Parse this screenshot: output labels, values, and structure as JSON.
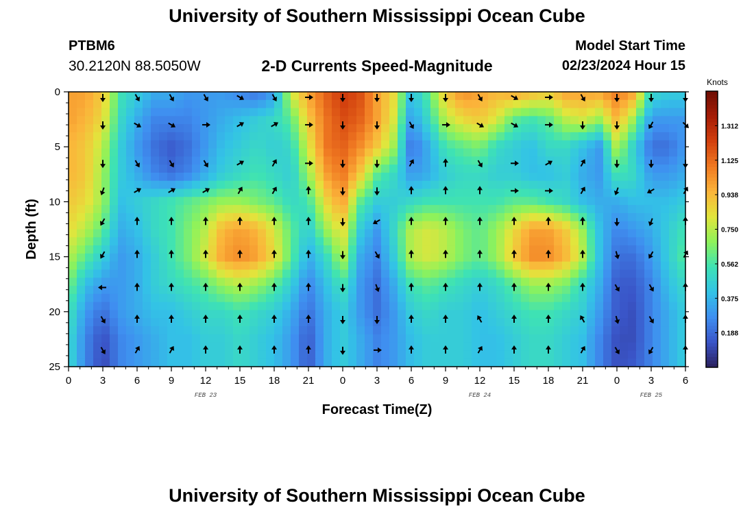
{
  "page": {
    "title_top": "University of Southern Mississippi Ocean Cube",
    "title_bottom": "University of Southern Mississippi Ocean Cube"
  },
  "station": {
    "id": "PTBM6",
    "coords": "30.2120N  88.5050W"
  },
  "model": {
    "label": "Model Start Time",
    "start": "02/23/2024 Hour 15"
  },
  "chart_data": {
    "type": "heatmap",
    "title": "2-D Currents Speed-Magnitude",
    "xlabel": "Forecast Time(Z)",
    "ylabel": "Depth (ft)",
    "x_tick_labels": [
      "0",
      "3",
      "6",
      "9",
      "12",
      "15",
      "18",
      "21",
      "0",
      "3",
      "6",
      "9",
      "12",
      "15",
      "18",
      "21",
      "0",
      "3",
      "6"
    ],
    "x_range_hours": [
      0,
      54
    ],
    "date_labels": [
      {
        "hour": 12,
        "text": "FEB 23"
      },
      {
        "hour": 36,
        "text": "FEB 24"
      },
      {
        "hour": 51,
        "text": "FEB 25"
      }
    ],
    "y_ticks": [
      0,
      5,
      10,
      15,
      20,
      25
    ],
    "ylim": [
      0,
      25
    ],
    "y_inverted": true,
    "colorbar": {
      "label": "Knots",
      "min": 0.0,
      "max": 1.5,
      "tick_values": [
        0.188,
        0.375,
        0.562,
        0.75,
        0.938,
        1.125,
        1.312
      ],
      "tick_labels": [
        "0.188",
        "0.375",
        "0.562",
        "0.750",
        "0.938",
        "1.125",
        "1.312"
      ],
      "colors": [
        "#2a1f5c",
        "#3a55c8",
        "#3f8ff0",
        "#33c3e6",
        "#3ee2b4",
        "#8ff25a",
        "#e2e53c",
        "#fbb43a",
        "#f07a22",
        "#d2400e",
        "#a51c06",
        "#6e0e04"
      ]
    },
    "speed_knots_grid": {
      "hours": [
        0,
        1.5,
        3,
        4.5,
        6,
        7.5,
        9,
        10.5,
        12,
        13.5,
        15,
        16.5,
        18,
        19.5,
        21,
        22.5,
        24,
        25.5,
        27,
        28.5,
        30,
        31.5,
        33,
        34.5,
        36,
        37.5,
        39,
        40.5,
        42,
        43.5,
        45,
        46.5,
        48,
        49.5,
        51,
        52.5,
        54
      ],
      "depths_ft": [
        0,
        2.5,
        5,
        7.5,
        10,
        12.5,
        15,
        17.5,
        20,
        22.5,
        25
      ],
      "values": [
        [
          1.0,
          1.0,
          0.9,
          0.55,
          0.45,
          0.35,
          0.35,
          0.3,
          0.3,
          0.3,
          0.25,
          0.2,
          0.3,
          0.8,
          1.0,
          1.15,
          1.25,
          1.2,
          1.0,
          0.85,
          0.4,
          0.6,
          0.9,
          1.05,
          1.0,
          0.95,
          1.0,
          0.95,
          0.9,
          1.0,
          1.0,
          1.0,
          1.1,
          1.0,
          0.5,
          0.45,
          0.45
        ],
        [
          1.0,
          0.95,
          0.85,
          0.5,
          0.35,
          0.25,
          0.25,
          0.25,
          0.3,
          0.35,
          0.4,
          0.45,
          0.5,
          0.6,
          0.9,
          1.1,
          1.2,
          1.15,
          1.0,
          0.8,
          0.3,
          0.5,
          0.75,
          0.85,
          0.9,
          0.8,
          0.6,
          0.55,
          0.6,
          0.75,
          0.8,
          0.7,
          0.95,
          0.7,
          0.3,
          0.3,
          0.3
        ],
        [
          0.95,
          0.9,
          0.75,
          0.45,
          0.3,
          0.2,
          0.15,
          0.2,
          0.3,
          0.4,
          0.45,
          0.5,
          0.45,
          0.5,
          0.8,
          1.1,
          1.15,
          1.05,
          0.9,
          0.7,
          0.2,
          0.35,
          0.55,
          0.6,
          0.65,
          0.5,
          0.45,
          0.4,
          0.5,
          0.5,
          0.4,
          0.3,
          0.75,
          0.45,
          0.2,
          0.2,
          0.3
        ],
        [
          0.95,
          0.9,
          0.7,
          0.45,
          0.35,
          0.25,
          0.2,
          0.25,
          0.35,
          0.45,
          0.5,
          0.55,
          0.5,
          0.45,
          0.7,
          1.0,
          1.1,
          0.9,
          0.6,
          0.5,
          0.3,
          0.35,
          0.45,
          0.5,
          0.5,
          0.45,
          0.45,
          0.4,
          0.4,
          0.45,
          0.35,
          0.3,
          0.55,
          0.5,
          0.3,
          0.3,
          0.35
        ],
        [
          0.9,
          0.85,
          0.7,
          0.4,
          0.45,
          0.5,
          0.55,
          0.6,
          0.65,
          0.7,
          0.7,
          0.65,
          0.6,
          0.5,
          0.55,
          0.85,
          1.0,
          0.6,
          0.45,
          0.45,
          0.5,
          0.55,
          0.55,
          0.55,
          0.55,
          0.55,
          0.6,
          0.6,
          0.55,
          0.5,
          0.4,
          0.35,
          0.35,
          0.4,
          0.4,
          0.4,
          0.45
        ],
        [
          0.85,
          0.75,
          0.6,
          0.35,
          0.4,
          0.5,
          0.55,
          0.65,
          0.75,
          0.95,
          1.0,
          0.95,
          0.8,
          0.6,
          0.45,
          0.7,
          0.85,
          0.45,
          0.3,
          0.5,
          0.75,
          0.8,
          0.75,
          0.65,
          0.6,
          0.7,
          0.85,
          1.0,
          1.0,
          0.9,
          0.7,
          0.4,
          0.25,
          0.3,
          0.35,
          0.45,
          0.55
        ],
        [
          0.75,
          0.6,
          0.45,
          0.3,
          0.35,
          0.45,
          0.55,
          0.65,
          0.8,
          1.0,
          1.05,
          1.0,
          0.85,
          0.6,
          0.35,
          0.5,
          0.75,
          0.35,
          0.25,
          0.45,
          0.75,
          0.8,
          0.75,
          0.65,
          0.6,
          0.7,
          0.9,
          1.05,
          1.05,
          0.95,
          0.75,
          0.4,
          0.2,
          0.2,
          0.3,
          0.45,
          0.6
        ],
        [
          0.65,
          0.4,
          0.3,
          0.3,
          0.35,
          0.45,
          0.5,
          0.55,
          0.6,
          0.7,
          0.75,
          0.7,
          0.6,
          0.45,
          0.25,
          0.4,
          0.55,
          0.3,
          0.2,
          0.35,
          0.55,
          0.6,
          0.55,
          0.5,
          0.45,
          0.5,
          0.6,
          0.7,
          0.7,
          0.65,
          0.5,
          0.35,
          0.15,
          0.15,
          0.25,
          0.4,
          0.5
        ],
        [
          0.55,
          0.3,
          0.2,
          0.3,
          0.35,
          0.4,
          0.4,
          0.45,
          0.5,
          0.5,
          0.55,
          0.5,
          0.45,
          0.35,
          0.2,
          0.35,
          0.45,
          0.3,
          0.2,
          0.3,
          0.45,
          0.5,
          0.45,
          0.45,
          0.4,
          0.45,
          0.5,
          0.55,
          0.55,
          0.5,
          0.45,
          0.3,
          0.15,
          0.12,
          0.25,
          0.35,
          0.45
        ],
        [
          0.5,
          0.25,
          0.12,
          0.25,
          0.3,
          0.35,
          0.4,
          0.4,
          0.45,
          0.45,
          0.5,
          0.45,
          0.4,
          0.3,
          0.15,
          0.35,
          0.45,
          0.35,
          0.25,
          0.3,
          0.4,
          0.45,
          0.45,
          0.45,
          0.4,
          0.4,
          0.45,
          0.5,
          0.5,
          0.45,
          0.4,
          0.25,
          0.12,
          0.12,
          0.25,
          0.35,
          0.45
        ],
        [
          0.5,
          0.25,
          0.1,
          0.25,
          0.3,
          0.35,
          0.4,
          0.4,
          0.45,
          0.45,
          0.5,
          0.45,
          0.4,
          0.3,
          0.15,
          0.35,
          0.45,
          0.35,
          0.25,
          0.3,
          0.4,
          0.45,
          0.45,
          0.45,
          0.4,
          0.4,
          0.45,
          0.5,
          0.5,
          0.45,
          0.4,
          0.25,
          0.12,
          0.15,
          0.25,
          0.35,
          0.45
        ]
      ]
    },
    "vector_grid": {
      "hours": [
        3,
        6,
        9,
        12,
        15,
        18,
        21,
        24,
        27,
        30,
        33,
        36,
        39,
        42,
        45,
        48,
        51,
        54
      ],
      "depths_ft": [
        0.5,
        3,
        6.5,
        9,
        11.8,
        14.8,
        17.8,
        20.7,
        23.5
      ],
      "direction_deg": [
        [
          180,
          150,
          150,
          150,
          120,
          150,
          90,
          180,
          180,
          180,
          180,
          150,
          120,
          90,
          150,
          180,
          180,
          180
        ],
        [
          180,
          120,
          120,
          90,
          60,
          60,
          90,
          180,
          180,
          150,
          90,
          120,
          120,
          90,
          180,
          180,
          210,
          135
        ],
        [
          180,
          150,
          150,
          150,
          60,
          30,
          90,
          180,
          180,
          30,
          0,
          150,
          90,
          60,
          30,
          180,
          180,
          180
        ],
        [
          200,
          60,
          60,
          60,
          30,
          30,
          0,
          180,
          180,
          0,
          0,
          0,
          90,
          90,
          30,
          200,
          240,
          30
        ],
        [
          210,
          0,
          0,
          0,
          0,
          0,
          0,
          180,
          240,
          0,
          0,
          0,
          0,
          0,
          0,
          180,
          200,
          0
        ],
        [
          210,
          0,
          0,
          0,
          0,
          0,
          0,
          180,
          150,
          0,
          0,
          0,
          0,
          0,
          0,
          165,
          210,
          30
        ],
        [
          270,
          0,
          0,
          0,
          0,
          0,
          0,
          180,
          160,
          0,
          0,
          0,
          0,
          0,
          0,
          150,
          150,
          0
        ],
        [
          150,
          0,
          0,
          0,
          0,
          0,
          0,
          180,
          180,
          0,
          0,
          330,
          0,
          0,
          330,
          165,
          150,
          0
        ],
        [
          150,
          30,
          30,
          0,
          0,
          0,
          0,
          180,
          90,
          0,
          0,
          30,
          0,
          0,
          30,
          150,
          210,
          0
        ]
      ]
    }
  }
}
